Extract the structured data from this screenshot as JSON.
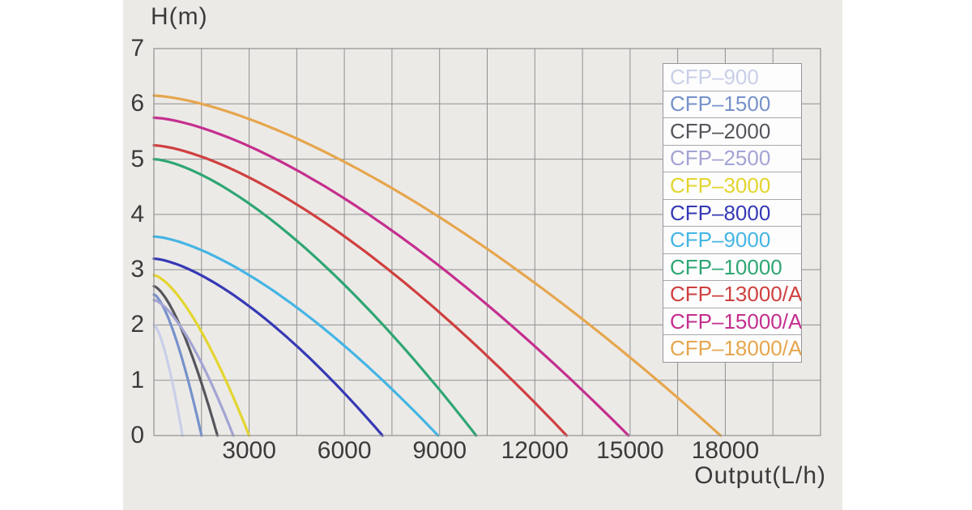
{
  "page": {
    "background": "#ffffff",
    "panel_background": "#eceae7"
  },
  "chart_data": {
    "type": "line",
    "title": "",
    "xlabel": "Output(L/h)",
    "ylabel": "H(m)",
    "xlim": [
      0,
      21000
    ],
    "ylim": [
      0,
      7
    ],
    "grid": true,
    "x_grid_step": 1500,
    "y_grid_step": 1,
    "x_tick_labels": [
      3000,
      6000,
      9000,
      12000,
      15000,
      18000
    ],
    "y_tick_labels": [
      0,
      1,
      2,
      3,
      4,
      5,
      6,
      7
    ],
    "grid_color": "#8f8f8f",
    "text_color": "#3b3b3b",
    "legend_position": "upper right",
    "curve_exponent": 1.5,
    "series": [
      {
        "label": "CFP–900",
        "color": "#c9cfe8",
        "max_head_m": 2.0,
        "max_flow_lh": 900
      },
      {
        "label": "CFP–1500",
        "color": "#7792cb",
        "max_head_m": 2.55,
        "max_flow_lh": 1500
      },
      {
        "label": "CFP–2000",
        "color": "#55565c",
        "max_head_m": 2.7,
        "max_flow_lh": 2000
      },
      {
        "label": "CFP–2500",
        "color": "#a3a4d4",
        "max_head_m": 2.45,
        "max_flow_lh": 2500
      },
      {
        "label": "CFP–3000",
        "color": "#e3d52f",
        "max_head_m": 2.9,
        "max_flow_lh": 3000
      },
      {
        "label": "CFP–8000",
        "color": "#3639b4",
        "max_head_m": 3.2,
        "max_flow_lh": 7200
      },
      {
        "label": "CFP–9000",
        "color": "#45b5e4",
        "max_head_m": 3.6,
        "max_flow_lh": 8950
      },
      {
        "label": "CFP–10000",
        "color": "#2fa673",
        "max_head_m": 5.0,
        "max_flow_lh": 10150
      },
      {
        "label": "CFP–13000/A",
        "color": "#cf4040",
        "max_head_m": 5.25,
        "max_flow_lh": 13000
      },
      {
        "label": "CFP–15000/A",
        "color": "#c42f8e",
        "max_head_m": 5.75,
        "max_flow_lh": 14950
      },
      {
        "label": "CFP–18000/A",
        "color": "#e6a64e",
        "max_head_m": 6.15,
        "max_flow_lh": 17850
      }
    ]
  }
}
